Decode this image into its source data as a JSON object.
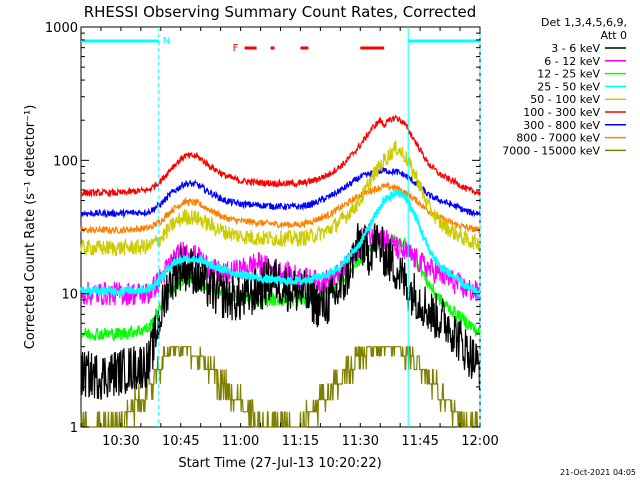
{
  "chart_data": {
    "type": "line",
    "title": "RHESSI Observing Summary Count Rates, Corrected",
    "xlabel": "Start Time (27-Jul-13 10:20:22)",
    "ylabel": "Corrected Count Rate (s⁻¹ detector⁻¹)",
    "yscale": "log",
    "ylim": [
      1,
      1000
    ],
    "xlim_minutes_after_1020": [
      0,
      100
    ],
    "x_ticks": [
      {
        "t": 10,
        "label": "10:30"
      },
      {
        "t": 25,
        "label": "10:45"
      },
      {
        "t": 40,
        "label": "11:00"
      },
      {
        "t": 55,
        "label": "11:15"
      },
      {
        "t": 70,
        "label": "11:30"
      },
      {
        "t": 85,
        "label": "11:45"
      },
      {
        "t": 100,
        "label": "12:00"
      }
    ],
    "y_ticks": [
      {
        "v": 1,
        "label": "1"
      },
      {
        "v": 10,
        "label": "10"
      },
      {
        "v": 100,
        "label": "100"
      },
      {
        "v": 1000,
        "label": "1000"
      }
    ],
    "legend_header": [
      "Det 1,3,4,5,6,9,",
      "Att 0"
    ],
    "flags": {
      "night_label": "N",
      "flare_label": "F",
      "night_intervals": [
        [
          0,
          19.5
        ],
        [
          82,
          100
        ]
      ],
      "flare_intervals": [
        [
          41,
          44
        ],
        [
          47.5,
          48.5
        ],
        [
          55,
          57
        ],
        [
          70,
          76
        ]
      ],
      "night_boundaries": [
        19.5,
        82,
        100
      ]
    },
    "series": [
      {
        "name": "3 - 6 keV",
        "color": "#000000",
        "points": [
          [
            0,
            2.5
          ],
          [
            5,
            2.4
          ],
          [
            10,
            2.6
          ],
          [
            17,
            3
          ],
          [
            20,
            7
          ],
          [
            22,
            12
          ],
          [
            25,
            16
          ],
          [
            28,
            15
          ],
          [
            31,
            12
          ],
          [
            34,
            10
          ],
          [
            40,
            9
          ],
          [
            45,
            11
          ],
          [
            48,
            13
          ],
          [
            52,
            11
          ],
          [
            56,
            10
          ],
          [
            60,
            8
          ],
          [
            63,
            9
          ],
          [
            66,
            12
          ],
          [
            68,
            18
          ],
          [
            70,
            25
          ],
          [
            72,
            20
          ],
          [
            74,
            25
          ],
          [
            76,
            20
          ],
          [
            80,
            14
          ],
          [
            82,
            11
          ],
          [
            85,
            9
          ],
          [
            88,
            7
          ],
          [
            92,
            6
          ],
          [
            96,
            4
          ],
          [
            100,
            2.8
          ]
        ]
      },
      {
        "name": "6 - 12 keV",
        "color": "#ff00ff",
        "points": [
          [
            0,
            10
          ],
          [
            5,
            10
          ],
          [
            10,
            10
          ],
          [
            17,
            10
          ],
          [
            20,
            13
          ],
          [
            23,
            18
          ],
          [
            26,
            21
          ],
          [
            30,
            18
          ],
          [
            33,
            15
          ],
          [
            36,
            14
          ],
          [
            40,
            15
          ],
          [
            44,
            17
          ],
          [
            48,
            15
          ],
          [
            52,
            14
          ],
          [
            56,
            13
          ],
          [
            60,
            12
          ],
          [
            63,
            13
          ],
          [
            66,
            15
          ],
          [
            68,
            18
          ],
          [
            70,
            25
          ],
          [
            72,
            28
          ],
          [
            74,
            28
          ],
          [
            76,
            26
          ],
          [
            79,
            22
          ],
          [
            82,
            20
          ],
          [
            85,
            17
          ],
          [
            88,
            15
          ],
          [
            92,
            13
          ],
          [
            96,
            11
          ],
          [
            100,
            10
          ]
        ]
      },
      {
        "name": "12 - 25 keV",
        "color": "#00ff00",
        "points": [
          [
            0,
            5
          ],
          [
            5,
            5
          ],
          [
            10,
            5
          ],
          [
            17,
            5.5
          ],
          [
            20,
            8
          ],
          [
            23,
            11
          ],
          [
            26,
            13
          ],
          [
            29,
            12.5
          ],
          [
            32,
            11
          ],
          [
            36,
            10
          ],
          [
            40,
            9.5
          ],
          [
            45,
            9
          ],
          [
            50,
            9
          ],
          [
            55,
            9
          ],
          [
            58,
            9
          ],
          [
            61,
            10
          ],
          [
            64,
            12
          ],
          [
            67,
            14
          ],
          [
            70,
            18
          ],
          [
            73,
            22
          ],
          [
            76,
            24
          ],
          [
            79,
            25
          ],
          [
            81,
            24
          ],
          [
            84,
            18
          ],
          [
            87,
            12
          ],
          [
            90,
            9
          ],
          [
            94,
            7
          ],
          [
            97,
            6
          ],
          [
            100,
            5
          ]
        ]
      },
      {
        "name": "25 - 50 keV",
        "color": "#00ffff",
        "points": [
          [
            0,
            10.5
          ],
          [
            5,
            10.5
          ],
          [
            10,
            10.5
          ],
          [
            17,
            10.8
          ],
          [
            20,
            13
          ],
          [
            23,
            17
          ],
          [
            26,
            18.5
          ],
          [
            29,
            18
          ],
          [
            32,
            16.5
          ],
          [
            36,
            15
          ],
          [
            40,
            14
          ],
          [
            45,
            13
          ],
          [
            50,
            12.5
          ],
          [
            55,
            12.5
          ],
          [
            58,
            13
          ],
          [
            62,
            14
          ],
          [
            66,
            17
          ],
          [
            70,
            24
          ],
          [
            73,
            35
          ],
          [
            76,
            50
          ],
          [
            79,
            57
          ],
          [
            81,
            55
          ],
          [
            84,
            37
          ],
          [
            87,
            22
          ],
          [
            90,
            16
          ],
          [
            94,
            13
          ],
          [
            97,
            11
          ],
          [
            100,
            10
          ]
        ]
      },
      {
        "name": "50 - 100 keV",
        "color": "#cccc00",
        "points": [
          [
            0,
            22
          ],
          [
            5,
            22
          ],
          [
            10,
            22
          ],
          [
            17,
            22.5
          ],
          [
            20,
            26
          ],
          [
            23,
            33
          ],
          [
            26,
            38
          ],
          [
            29,
            37
          ],
          [
            32,
            33
          ],
          [
            36,
            29
          ],
          [
            40,
            27
          ],
          [
            45,
            26
          ],
          [
            50,
            26
          ],
          [
            55,
            26
          ],
          [
            58,
            27
          ],
          [
            62,
            30
          ],
          [
            66,
            37
          ],
          [
            70,
            50
          ],
          [
            73,
            75
          ],
          [
            76,
            100
          ],
          [
            79,
            125
          ],
          [
            81,
            110
          ],
          [
            84,
            75
          ],
          [
            87,
            45
          ],
          [
            90,
            34
          ],
          [
            94,
            28
          ],
          [
            97,
            25
          ],
          [
            100,
            24
          ]
        ]
      },
      {
        "name": "100 - 300 keV",
        "color": "#ff0000",
        "points": [
          [
            0,
            57
          ],
          [
            5,
            57
          ],
          [
            10,
            57
          ],
          [
            17,
            60
          ],
          [
            20,
            70
          ],
          [
            23,
            90
          ],
          [
            26,
            108
          ],
          [
            29,
            108
          ],
          [
            32,
            92
          ],
          [
            36,
            77
          ],
          [
            40,
            70
          ],
          [
            45,
            68
          ],
          [
            50,
            67
          ],
          [
            55,
            67
          ],
          [
            58,
            70
          ],
          [
            62,
            78
          ],
          [
            66,
            95
          ],
          [
            70,
            130
          ],
          [
            73,
            175
          ],
          [
            75,
            200
          ],
          [
            76,
            185
          ],
          [
            78,
            205
          ],
          [
            79,
            210
          ],
          [
            81,
            190
          ],
          [
            84,
            135
          ],
          [
            87,
            95
          ],
          [
            90,
            78
          ],
          [
            94,
            68
          ],
          [
            97,
            60
          ],
          [
            100,
            57
          ]
        ]
      },
      {
        "name": "300 - 800 keV",
        "color": "#0000ff",
        "points": [
          [
            0,
            40
          ],
          [
            5,
            40
          ],
          [
            10,
            40
          ],
          [
            17,
            41
          ],
          [
            20,
            47
          ],
          [
            23,
            58
          ],
          [
            26,
            67
          ],
          [
            29,
            66
          ],
          [
            32,
            58
          ],
          [
            36,
            50
          ],
          [
            40,
            47
          ],
          [
            45,
            46
          ],
          [
            50,
            45
          ],
          [
            55,
            45
          ],
          [
            58,
            47
          ],
          [
            62,
            53
          ],
          [
            66,
            62
          ],
          [
            70,
            75
          ],
          [
            73,
            80
          ],
          [
            76,
            84
          ],
          [
            79,
            82
          ],
          [
            81,
            78
          ],
          [
            84,
            67
          ],
          [
            87,
            55
          ],
          [
            90,
            50
          ],
          [
            94,
            45
          ],
          [
            97,
            41
          ],
          [
            100,
            40
          ]
        ]
      },
      {
        "name": "800 - 7000 keV",
        "color": "#ff7f00",
        "points": [
          [
            0,
            30
          ],
          [
            5,
            30
          ],
          [
            10,
            30
          ],
          [
            17,
            31
          ],
          [
            20,
            35
          ],
          [
            23,
            43
          ],
          [
            26,
            49
          ],
          [
            29,
            48
          ],
          [
            32,
            43
          ],
          [
            36,
            37
          ],
          [
            40,
            35
          ],
          [
            45,
            34
          ],
          [
            50,
            33
          ],
          [
            55,
            33
          ],
          [
            58,
            35
          ],
          [
            62,
            39
          ],
          [
            66,
            46
          ],
          [
            70,
            55
          ],
          [
            73,
            60
          ],
          [
            76,
            64
          ],
          [
            79,
            62
          ],
          [
            81,
            58
          ],
          [
            84,
            50
          ],
          [
            87,
            42
          ],
          [
            90,
            37
          ],
          [
            94,
            33
          ],
          [
            97,
            31
          ],
          [
            100,
            30
          ]
        ]
      },
      {
        "name": "7000 - 15000 keV",
        "color": "#808000",
        "points": [
          [
            0,
            1
          ],
          [
            5,
            1
          ],
          [
            10,
            1
          ],
          [
            12,
            1.3
          ],
          [
            15,
            1.6
          ],
          [
            17,
            2
          ],
          [
            19,
            2.6
          ],
          [
            21,
            3.3
          ],
          [
            24,
            4
          ],
          [
            27,
            3.8
          ],
          [
            30,
            3.2
          ],
          [
            33,
            2.6
          ],
          [
            36,
            2
          ],
          [
            39,
            1.6
          ],
          [
            42,
            1.3
          ],
          [
            45,
            1
          ],
          [
            50,
            1
          ],
          [
            55,
            1
          ],
          [
            58,
            1.3
          ],
          [
            61,
            1.6
          ],
          [
            64,
            2.1
          ],
          [
            67,
            2.7
          ],
          [
            70,
            3.4
          ],
          [
            73,
            4
          ],
          [
            76,
            4.3
          ],
          [
            79,
            4
          ],
          [
            82,
            3.4
          ],
          [
            85,
            2.7
          ],
          [
            88,
            2.1
          ],
          [
            91,
            1.6
          ],
          [
            94,
            1.3
          ],
          [
            97,
            1
          ],
          [
            100,
            1
          ]
        ]
      }
    ]
  },
  "footer": {
    "date_stamp": "21-Oct-2021 04:05"
  }
}
